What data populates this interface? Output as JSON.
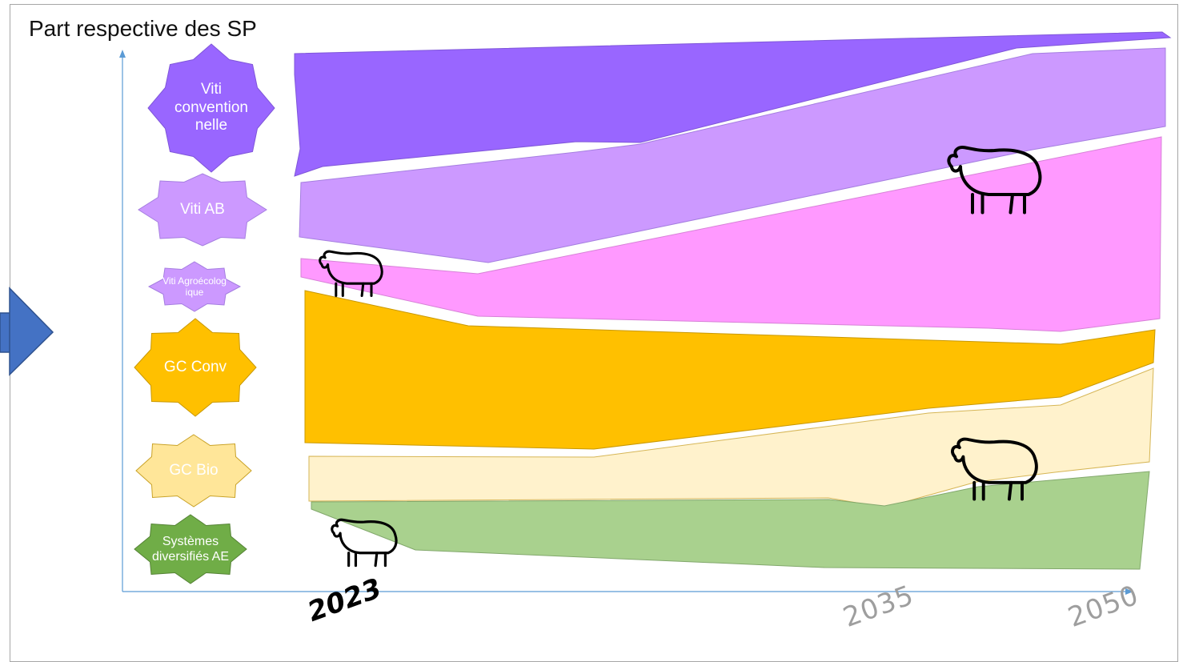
{
  "title": "Part respective des SP",
  "systems": [
    {
      "label": "Viti convention nelle",
      "color": "#9966ff"
    },
    {
      "label": "Viti AB",
      "color": "#cc99ff"
    },
    {
      "label": "Viti Agroécolog ique",
      "color": "#ff99ff"
    },
    {
      "label": "GC Conv",
      "color": "#ffc000"
    },
    {
      "label": "GC Bio",
      "color": "#fff2cc"
    },
    {
      "label": "Systèmes diversifiés AE",
      "color": "#a9d18e"
    }
  ],
  "years": [
    "2023",
    "2035",
    "2050"
  ],
  "colors": {
    "arrow": "#4472c4",
    "axis": "#5b9bd5"
  }
}
